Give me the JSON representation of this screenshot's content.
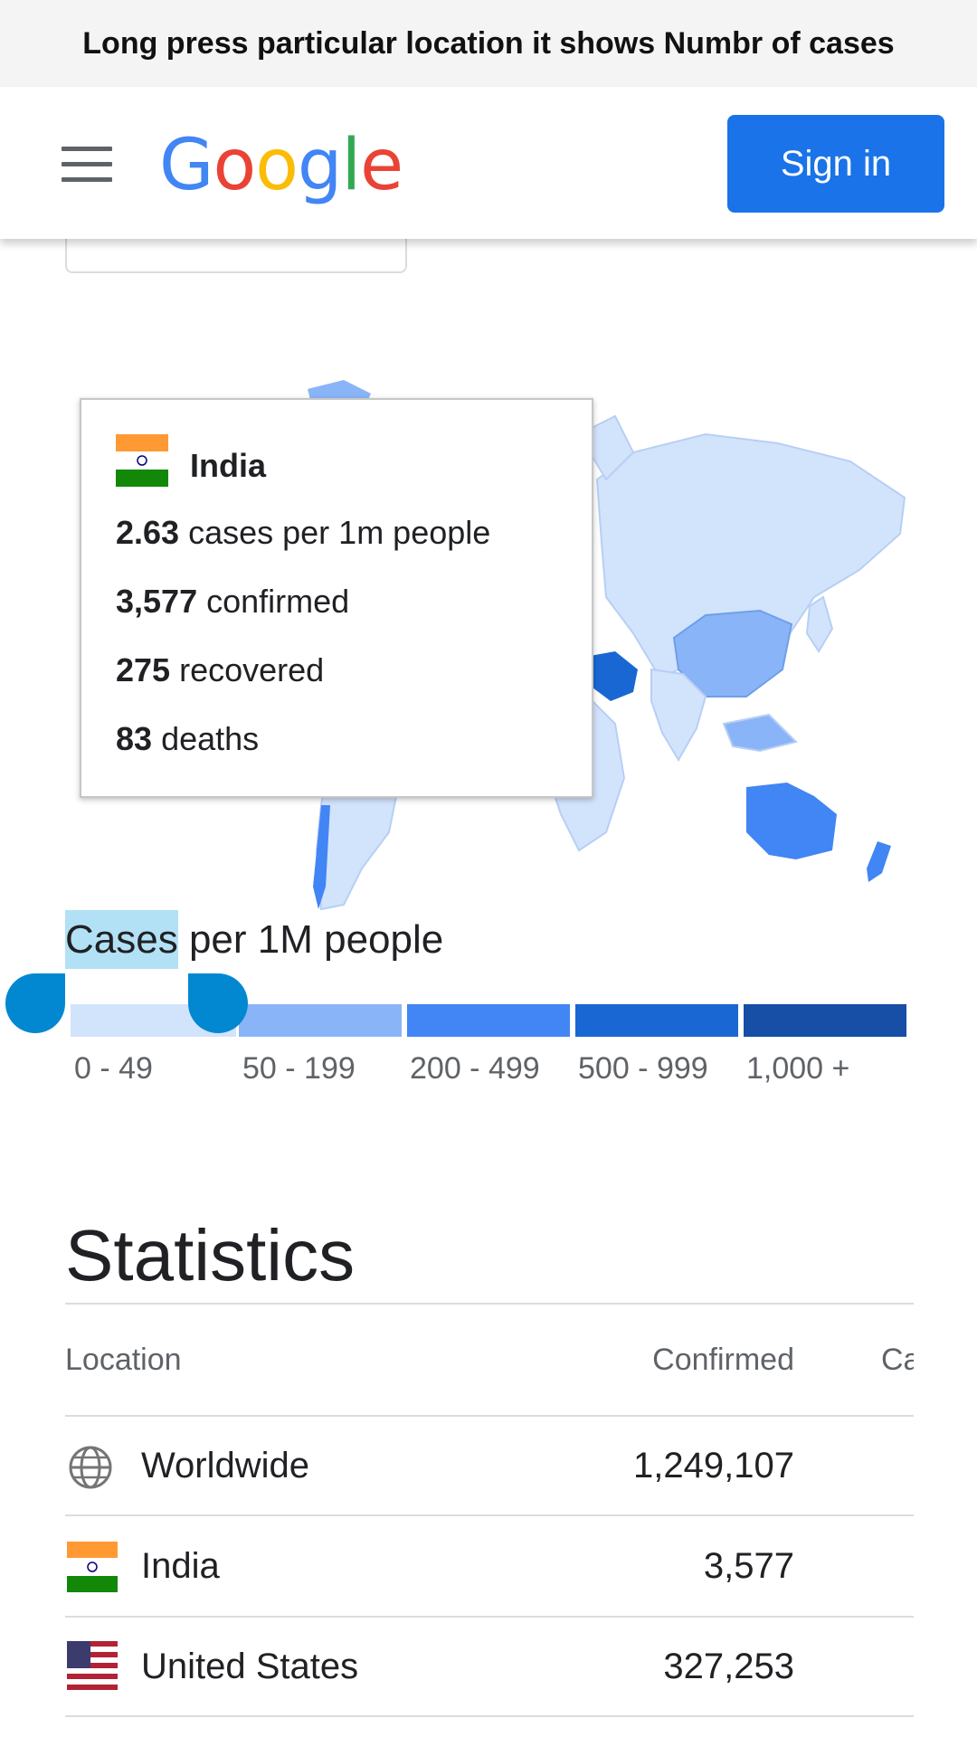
{
  "banner": {
    "text": "Long press particular location it shows Numbr of cases"
  },
  "header": {
    "logo_letters": [
      {
        "char": "G",
        "color": "#4285F4"
      },
      {
        "char": "o",
        "color": "#EA4335"
      },
      {
        "char": "o",
        "color": "#FBBC05"
      },
      {
        "char": "g",
        "color": "#4285F4"
      },
      {
        "char": "l",
        "color": "#34A853"
      },
      {
        "char": "e",
        "color": "#EA4335"
      }
    ],
    "signin_label": "Sign in",
    "accent": "#1a73e8"
  },
  "tooltip": {
    "country": "India",
    "per_million_value": "2.63",
    "per_million_text": "cases per 1m people",
    "confirmed_value": "3,577",
    "confirmed_text": "confirmed",
    "recovered_value": "275",
    "recovered_text": "recovered",
    "deaths_value": "83",
    "deaths_text": "deaths"
  },
  "legend": {
    "title_selected": "Cases",
    "title_rest": "per 1M people",
    "buckets": [
      {
        "label": "0 - 49",
        "color": "#d2e3fc"
      },
      {
        "label": "50 - 199",
        "color": "#8ab4f8"
      },
      {
        "label": "200 - 499",
        "color": "#4285f4"
      },
      {
        "label": "500 - 999",
        "color": "#1967d2"
      },
      {
        "label": "1,000 +",
        "color": "#174ea6"
      }
    ]
  },
  "statistics": {
    "title": "Statistics",
    "columns": [
      "Location",
      "Confirmed",
      "Ca"
    ],
    "rows": [
      {
        "icon": "globe-icon",
        "location": "Worldwide",
        "confirmed": "1,249,107"
      },
      {
        "icon": "india-flag-icon",
        "location": "India",
        "confirmed": "3,577"
      },
      {
        "icon": "us-flag-icon",
        "location": "United States",
        "confirmed": "327,253"
      }
    ]
  }
}
